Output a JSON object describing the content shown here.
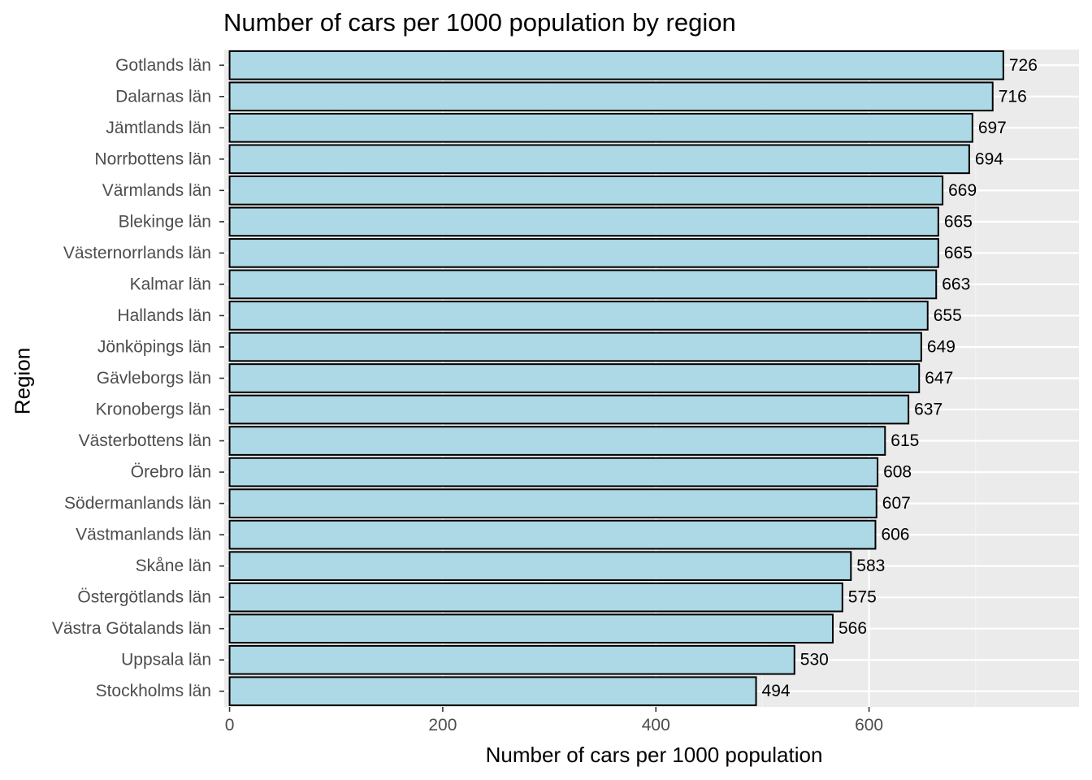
{
  "chart_data": {
    "type": "bar",
    "orientation": "horizontal",
    "title": "Number of cars per 1000 population by region",
    "xlabel": "Number of cars per 1000 population",
    "ylabel": "Region",
    "categories": [
      "Gotlands län",
      "Dalarnas län",
      "Jämtlands län",
      "Norrbottens län",
      "Värmlands län",
      "Blekinge län",
      "Västernorrlands län",
      "Kalmar län",
      "Hallands län",
      "Jönköpings län",
      "Gävleborgs län",
      "Kronobergs län",
      "Västerbottens län",
      "Örebro län",
      "Södermanlands län",
      "Västmanlands län",
      "Skåne län",
      "Östergötlands län",
      "Västra Götalands län",
      "Uppsala län",
      "Stockholms län"
    ],
    "values": [
      726,
      716,
      697,
      694,
      669,
      665,
      665,
      663,
      655,
      649,
      647,
      637,
      615,
      608,
      607,
      606,
      583,
      575,
      566,
      530,
      494
    ],
    "data_labels": [
      "726",
      "716",
      "697",
      "694",
      "669",
      "665",
      "665",
      "663",
      "655",
      "649",
      "647",
      "637",
      "615",
      "608",
      "607",
      "606",
      "583",
      "575",
      "566",
      "530",
      "494"
    ],
    "x_ticks": [
      0,
      200,
      400,
      600
    ],
    "x_tick_labels": [
      "0",
      "200",
      "400",
      "600"
    ],
    "xlim": [
      -5,
      797
    ],
    "grid": true,
    "legend": "none",
    "colors": {
      "bar_fill": "#add8e6",
      "bar_stroke": "#000000",
      "panel_background": "#ebebeb",
      "grid_major": "#ffffff",
      "grid_minor": "#f5f5f5",
      "tick_label": "#4d4d4d",
      "axis_tick": "#333333",
      "data_label": "#000000"
    }
  }
}
